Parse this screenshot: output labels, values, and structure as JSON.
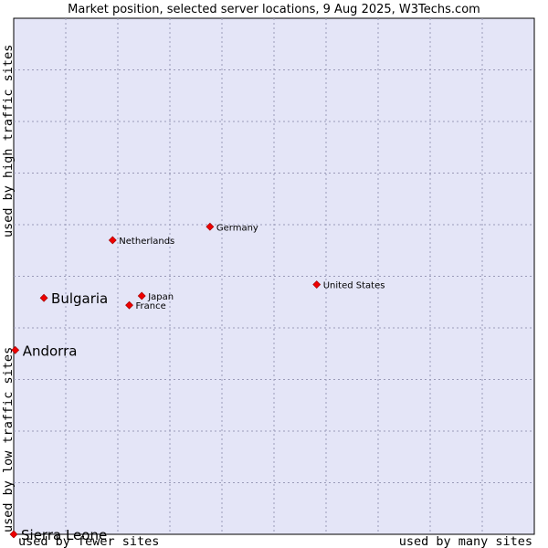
{
  "chart_data": {
    "type": "scatter",
    "title": "Market position, selected server locations, 9 Aug 2025, W3Techs.com",
    "xlabel_left": "used by fewer sites",
    "xlabel_right": "used by many sites",
    "ylabel_bottom": "used by low traffic sites",
    "ylabel_top": "used by high traffic sites",
    "xlim": [
      0,
      100
    ],
    "ylim": [
      0,
      100
    ],
    "grid": true,
    "points": [
      {
        "name": "Germany",
        "x": 37.7,
        "y": 59.6,
        "size": "small"
      },
      {
        "name": "Netherlands",
        "x": 19.0,
        "y": 57.0,
        "size": "small"
      },
      {
        "name": "United States",
        "x": 58.2,
        "y": 48.4,
        "size": "small"
      },
      {
        "name": "Japan",
        "x": 24.6,
        "y": 46.2,
        "size": "small"
      },
      {
        "name": "France",
        "x": 22.2,
        "y": 44.4,
        "size": "small"
      },
      {
        "name": "Bulgaria",
        "x": 5.8,
        "y": 45.8,
        "size": "large"
      },
      {
        "name": "Andorra",
        "x": 0.3,
        "y": 35.7,
        "size": "large"
      },
      {
        "name": "Sierra Leone",
        "x": 0.0,
        "y": 0.0,
        "size": "large"
      }
    ]
  }
}
